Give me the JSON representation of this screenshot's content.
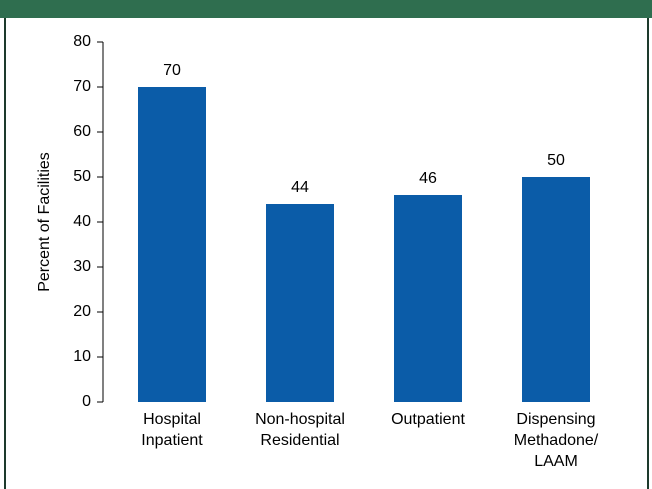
{
  "chart_data": {
    "type": "bar",
    "y_label": "Percent of Facilities",
    "categories": [
      "Hospital Inpatient",
      "Non-hospital Residential",
      "Outpatient",
      "Dispensing Methadone/ LAAM"
    ],
    "values": [
      70,
      44,
      46,
      50
    ],
    "color": "#0b5ca8",
    "ylim": [
      0,
      80
    ],
    "yticks": [
      0,
      10,
      20,
      30,
      40,
      50,
      60,
      70,
      80
    ],
    "grid": false
  }
}
